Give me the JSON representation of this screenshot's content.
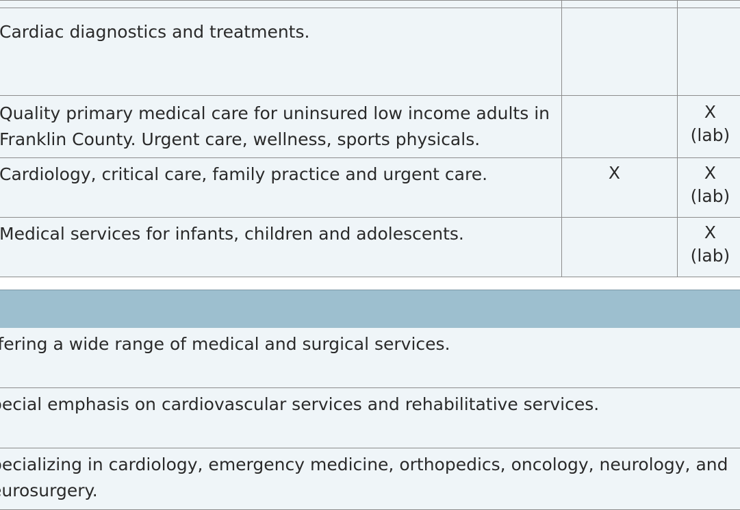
{
  "services_table": {
    "rows": [
      {
        "description": "Cardiac diagnostics and treatments.",
        "col2": "",
        "col3": "",
        "col3_sub": ""
      },
      {
        "description_line1": "Quality primary medical care for uninsured low income adults in",
        "description_line2": "Franklin County. Urgent care, wellness, sports physicals.",
        "col2": "",
        "col3": "X",
        "col3_sub": "(lab)"
      },
      {
        "description": "Cardiology, critical care, family practice and urgent care.",
        "col2": "X",
        "col3": "X",
        "col3_sub": "(lab)"
      },
      {
        "description": "Medical services for infants, children and adolescents.",
        "col2": "",
        "col3": "X",
        "col3_sub": "(lab)"
      }
    ]
  },
  "hospitals_table": {
    "section_title": "",
    "rows": [
      {
        "description": "ffering a wide range of medical and surgical services."
      },
      {
        "description": "pecial emphasis on cardiovascular services and rehabilitative services."
      },
      {
        "description_line1": "pecializing in cardiology, emergency medicine, orthopedics, oncology, neurology, and",
        "description_line2": "eurosurgery."
      }
    ]
  }
}
